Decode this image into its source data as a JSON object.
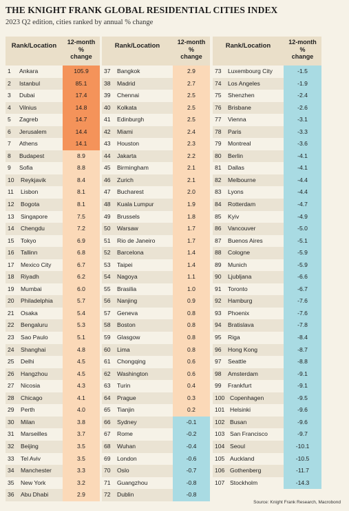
{
  "title": "THE KNIGHT FRANK GLOBAL RESIDENTIAL CITIES INDEX",
  "subtitle": "2023 Q2 edition, cities ranked by annual % change",
  "source": "Source: Knight Frank Research, Macrobond",
  "headers": {
    "location": "Rank/Location",
    "change_line1": "12-month",
    "change_line2": "%",
    "change_line3": "change"
  },
  "colors": {
    "top_accent": "#f4935a",
    "positive": "#fbd9b8",
    "negative": "#a9dbe3",
    "header_bg": "#eadfc9",
    "background": "#f6f2e7"
  },
  "chart_data": {
    "type": "table",
    "title": "THE KNIGHT FRANK GLOBAL RESIDENTIAL CITIES INDEX",
    "subtitle": "2023 Q2 edition, cities ranked by annual % change",
    "columns": [
      "Rank/Location",
      "12-month % change"
    ],
    "rows": [
      {
        "rank": "1",
        "city": "Ankara",
        "value": "105.9"
      },
      {
        "rank": "2",
        "city": "Istanbul",
        "value": "85.1"
      },
      {
        "rank": "3",
        "city": "Dubai",
        "value": "17.4"
      },
      {
        "rank": "4",
        "city": "Vilnius",
        "value": "14.8"
      },
      {
        "rank": "5",
        "city": "Zagreb",
        "value": "14.7"
      },
      {
        "rank": "6",
        "city": "Jerusalem",
        "value": "14.4"
      },
      {
        "rank": "7",
        "city": "Athens",
        "value": "14.1"
      },
      {
        "rank": "8",
        "city": "Budapest",
        "value": "8.9"
      },
      {
        "rank": "9",
        "city": "Sofia",
        "value": "8.8"
      },
      {
        "rank": "10",
        "city": "Reykjavik",
        "value": "8.4"
      },
      {
        "rank": "11",
        "city": "Lisbon",
        "value": "8.1"
      },
      {
        "rank": "12",
        "city": "Bogota",
        "value": "8.1"
      },
      {
        "rank": "13",
        "city": "Singapore",
        "value": "7.5"
      },
      {
        "rank": "14",
        "city": "Chengdu",
        "value": "7.2"
      },
      {
        "rank": "15",
        "city": "Tokyo",
        "value": "6.9"
      },
      {
        "rank": "16",
        "city": "Tallinn",
        "value": "6.8"
      },
      {
        "rank": "17",
        "city": "Mexico City",
        "value": "6.7"
      },
      {
        "rank": "18",
        "city": "Riyadh",
        "value": "6.2"
      },
      {
        "rank": "19",
        "city": "Mumbai",
        "value": "6.0"
      },
      {
        "rank": "20",
        "city": "Philadelphia",
        "value": "5.7"
      },
      {
        "rank": "21",
        "city": "Osaka",
        "value": "5.4"
      },
      {
        "rank": "22",
        "city": "Bengaluru",
        "value": "5.3"
      },
      {
        "rank": "23",
        "city": "Sao Paulo",
        "value": "5.1"
      },
      {
        "rank": "24",
        "city": "Shanghai",
        "value": "4.8"
      },
      {
        "rank": "25",
        "city": "Delhi",
        "value": "4.5"
      },
      {
        "rank": "26",
        "city": "Hangzhou",
        "value": "4.5"
      },
      {
        "rank": "27",
        "city": "Nicosia",
        "value": "4.3"
      },
      {
        "rank": "28",
        "city": "Chicago",
        "value": "4.1"
      },
      {
        "rank": "29",
        "city": "Perth",
        "value": "4.0"
      },
      {
        "rank": "30",
        "city": "Milan",
        "value": "3.8"
      },
      {
        "rank": "31",
        "city": "Marseilles",
        "value": "3.7"
      },
      {
        "rank": "32",
        "city": "Beijing",
        "value": "3.5"
      },
      {
        "rank": "33",
        "city": "Tel Aviv",
        "value": "3.5"
      },
      {
        "rank": "34",
        "city": "Manchester",
        "value": "3.3"
      },
      {
        "rank": "35",
        "city": "New York",
        "value": "3.2"
      },
      {
        "rank": "36",
        "city": "Abu Dhabi",
        "value": "2.9"
      },
      {
        "rank": "37",
        "city": "Bangkok",
        "value": "2.9"
      },
      {
        "rank": "38",
        "city": "Madrid",
        "value": "2.7"
      },
      {
        "rank": "39",
        "city": "Chennai",
        "value": "2.5"
      },
      {
        "rank": "40",
        "city": "Kolkata",
        "value": "2.5"
      },
      {
        "rank": "41",
        "city": "Edinburgh",
        "value": "2.5"
      },
      {
        "rank": "42",
        "city": "Miami",
        "value": "2.4"
      },
      {
        "rank": "43",
        "city": "Houston",
        "value": "2.3"
      },
      {
        "rank": "44",
        "city": "Jakarta",
        "value": "2.2"
      },
      {
        "rank": "45",
        "city": "Birmingham",
        "value": "2.1"
      },
      {
        "rank": "46",
        "city": "Zurich",
        "value": "2.1"
      },
      {
        "rank": "47",
        "city": "Bucharest",
        "value": "2.0"
      },
      {
        "rank": "48",
        "city": "Kuala Lumpur",
        "value": "1.9"
      },
      {
        "rank": "49",
        "city": "Brussels",
        "value": "1.8"
      },
      {
        "rank": "50",
        "city": "Warsaw",
        "value": "1.7"
      },
      {
        "rank": "51",
        "city": "Rio de Janeiro",
        "value": "1.7"
      },
      {
        "rank": "52",
        "city": "Barcelona",
        "value": "1.4"
      },
      {
        "rank": "53",
        "city": "Taipei",
        "value": "1.4"
      },
      {
        "rank": "54",
        "city": "Nagoya",
        "value": "1.1"
      },
      {
        "rank": "55",
        "city": "Brasilia",
        "value": "1.0"
      },
      {
        "rank": "56",
        "city": "Nanjing",
        "value": "0.9"
      },
      {
        "rank": "57",
        "city": "Geneva",
        "value": "0.8"
      },
      {
        "rank": "58",
        "city": "Boston",
        "value": "0.8"
      },
      {
        "rank": "59",
        "city": "Glasgow",
        "value": "0.8"
      },
      {
        "rank": "60",
        "city": "Lima",
        "value": "0.8"
      },
      {
        "rank": "61",
        "city": "Chongqing",
        "value": "0.6"
      },
      {
        "rank": "62",
        "city": "Washington",
        "value": "0.6"
      },
      {
        "rank": "63",
        "city": "Turin",
        "value": "0.4"
      },
      {
        "rank": "64",
        "city": "Prague",
        "value": "0.3"
      },
      {
        "rank": "65",
        "city": "Tianjin",
        "value": "0.2"
      },
      {
        "rank": "66",
        "city": "Sydney",
        "value": "-0.1"
      },
      {
        "rank": "67",
        "city": "Rome",
        "value": "-0.2"
      },
      {
        "rank": "68",
        "city": "Wuhan",
        "value": "-0.4"
      },
      {
        "rank": "69",
        "city": "London",
        "value": "-0.6"
      },
      {
        "rank": "70",
        "city": "Oslo",
        "value": "-0.7"
      },
      {
        "rank": "71",
        "city": "Guangzhou",
        "value": "-0.8"
      },
      {
        "rank": "72",
        "city": "Dublin",
        "value": "-0.8"
      },
      {
        "rank": "73",
        "city": "Luxembourg City",
        "value": "-1.5"
      },
      {
        "rank": "74",
        "city": "Los Angeles",
        "value": "-1.9"
      },
      {
        "rank": "75",
        "city": "Shenzhen",
        "value": "-2.4"
      },
      {
        "rank": "76",
        "city": "Brisbane",
        "value": "-2.6"
      },
      {
        "rank": "77",
        "city": "Vienna",
        "value": "-3.1"
      },
      {
        "rank": "78",
        "city": "Paris",
        "value": "-3.3"
      },
      {
        "rank": "79",
        "city": "Montreal",
        "value": "-3.6"
      },
      {
        "rank": "80",
        "city": "Berlin",
        "value": "-4.1"
      },
      {
        "rank": "81",
        "city": "Dallas",
        "value": "-4.1"
      },
      {
        "rank": "82",
        "city": "Melbourne",
        "value": "-4.4"
      },
      {
        "rank": "83",
        "city": "Lyons",
        "value": "-4.4"
      },
      {
        "rank": "84",
        "city": "Rotterdam",
        "value": "-4.7"
      },
      {
        "rank": "85",
        "city": "Kyiv",
        "value": "-4.9"
      },
      {
        "rank": "86",
        "city": "Vancouver",
        "value": "-5.0"
      },
      {
        "rank": "87",
        "city": "Buenos Aires",
        "value": "-5.1"
      },
      {
        "rank": "88",
        "city": "Cologne",
        "value": "-5.9"
      },
      {
        "rank": "89",
        "city": "Munich",
        "value": "-5.9"
      },
      {
        "rank": "90",
        "city": "Ljubljana",
        "value": "-6.6"
      },
      {
        "rank": "91",
        "city": "Toronto",
        "value": "-6.7"
      },
      {
        "rank": "92",
        "city": "Hamburg",
        "value": "-7.6"
      },
      {
        "rank": "93",
        "city": "Phoenix",
        "value": "-7.6"
      },
      {
        "rank": "94",
        "city": "Bratislava",
        "value": "-7.8"
      },
      {
        "rank": "95",
        "city": "Riga",
        "value": "-8.4"
      },
      {
        "rank": "96",
        "city": "Hong Kong",
        "value": "-8.7"
      },
      {
        "rank": "97",
        "city": "Seattle",
        "value": "-8.8"
      },
      {
        "rank": "98",
        "city": "Amsterdam",
        "value": "-9.1"
      },
      {
        "rank": "99",
        "city": "Frankfurt",
        "value": "-9.1"
      },
      {
        "rank": "100",
        "city": "Copenhagen",
        "value": "-9.5"
      },
      {
        "rank": "101",
        "city": "Helsinki",
        "value": "-9.6"
      },
      {
        "rank": "102",
        "city": "Busan",
        "value": "-9.6"
      },
      {
        "rank": "103",
        "city": "San Francisco",
        "value": "-9.7"
      },
      {
        "rank": "104",
        "city": "Seoul",
        "value": "-10.1"
      },
      {
        "rank": "105",
        "city": "Auckland",
        "value": "-10.5"
      },
      {
        "rank": "106",
        "city": "Gothenberg",
        "value": "-11.7"
      },
      {
        "rank": "107",
        "city": "Stockholm",
        "value": "-14.3"
      }
    ]
  }
}
